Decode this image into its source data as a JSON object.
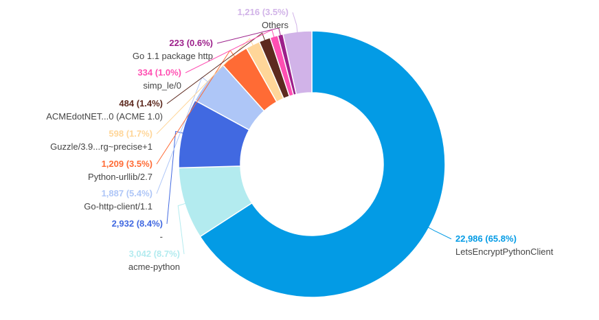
{
  "chart_data": {
    "type": "pie",
    "variant": "donut",
    "legend": "none",
    "slices": [
      {
        "label": "LetsEncryptPythonClient",
        "value": 22986,
        "value_text": "22,986 (65.8%)",
        "percent": 65.8,
        "color": "#039be5"
      },
      {
        "label": "acme-python",
        "value": 3042,
        "value_text": "3,042 (8.7%)",
        "percent": 8.7,
        "color": "#b3ebef"
      },
      {
        "label": "-",
        "value": 2932,
        "value_text": "2,932 (8.4%)",
        "percent": 8.4,
        "color": "#4169e1"
      },
      {
        "label": "Go-http-client/1.1",
        "value": 1887,
        "value_text": "1,887 (5.4%)",
        "percent": 5.4,
        "color": "#aec6f7"
      },
      {
        "label": "Python-urllib/2.7",
        "value": 1209,
        "value_text": "1,209 (3.5%)",
        "percent": 3.5,
        "color": "#ff6b35"
      },
      {
        "label": "Guzzle/3.9...rg~precise+1",
        "value": 598,
        "value_text": "598 (1.7%)",
        "percent": 1.7,
        "color": "#ffd699"
      },
      {
        "label": "ACMEdotNET...0 (ACME 1.0)",
        "value": 484,
        "value_text": "484 (1.4%)",
        "percent": 1.4,
        "color": "#5d2a1f"
      },
      {
        "label": "simp_le/0",
        "value": 334,
        "value_text": "334 (1.0%)",
        "percent": 1.0,
        "color": "#ff4fb2"
      },
      {
        "label": "Go 1.1 package http",
        "value": 223,
        "value_text": "223 (0.6%)",
        "percent": 0.6,
        "color": "#9c1f8a"
      },
      {
        "label": "Others",
        "value": 1216,
        "value_text": "1,216 (3.5%)",
        "percent": 3.5,
        "color": "#d1b3e8"
      }
    ]
  }
}
